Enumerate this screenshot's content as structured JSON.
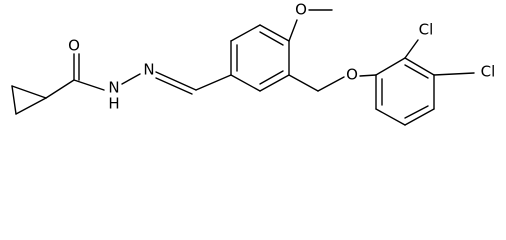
{
  "atoms": [
    {
      "label": "O"
    },
    {
      "label": "N"
    },
    {
      "label": "H"
    },
    {
      "label": "N"
    },
    {
      "label": "O"
    },
    {
      "label": "O"
    },
    {
      "label": "Cl"
    },
    {
      "label": "Cl"
    }
  ]
}
